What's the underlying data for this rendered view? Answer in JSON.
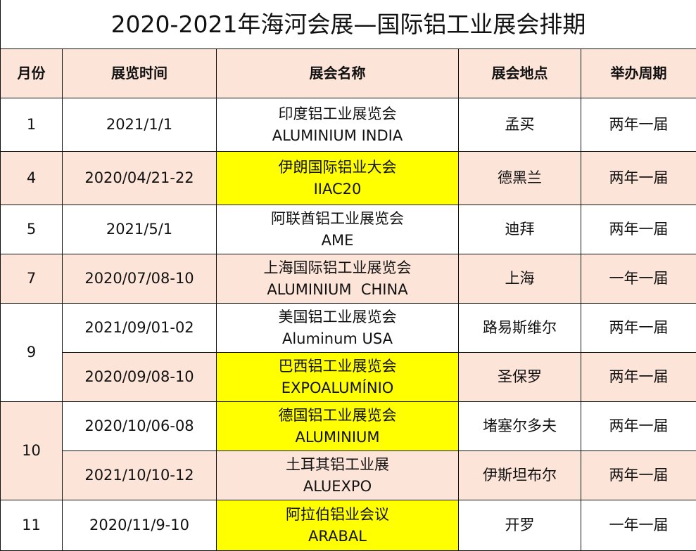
{
  "title": "2020-2021年海河会展—国际铝工业展会排期",
  "headers": [
    "月份",
    "展览时间",
    "展会名称",
    "展会地点",
    "举办周期"
  ],
  "colors": {
    "header_bg": "#fde4d8",
    "alt_row_bg": "#fde4d8",
    "highlight": "#ffff00"
  },
  "rows": [
    {
      "month": "1",
      "date": "2021/1/1",
      "name_cn": "印度铝工业展览会",
      "name_en": "ALUMINIUM INDIA",
      "place": "孟买",
      "cycle": "两年一届",
      "highlight": false
    },
    {
      "month": "4",
      "date": "2020/04/21-22",
      "name_cn": "伊朗国际铝业大会",
      "name_en": "IIAC20",
      "place": "德黑兰",
      "cycle": "两年一届",
      "highlight": true
    },
    {
      "month": "5",
      "date": "2021/5/1",
      "name_cn": "阿联酋铝工业展览会",
      "name_en": "AME",
      "place": "迪拜",
      "cycle": "两年一届",
      "highlight": false
    },
    {
      "month": "7",
      "date": "2020/07/08-10",
      "name_cn": "上海国际铝工业展览会",
      "name_en": "ALUMINIUM  CHINA",
      "place": "上海",
      "cycle": "一年一届",
      "highlight": false
    },
    {
      "month": "9",
      "date": "2021/09/01-02",
      "name_cn": "美国铝工业展览会",
      "name_en": "Aluminum USA",
      "place": "路易斯维尔",
      "cycle": "两年一届",
      "highlight": false
    },
    {
      "month": "9",
      "date": "2020/09/08-10",
      "name_cn": "巴西铝工业展览会",
      "name_en": "EXPOALUMÍNIO",
      "place": "圣保罗",
      "cycle": "两年一届",
      "highlight": true
    },
    {
      "month": "10",
      "date": "2020/10/06-08",
      "name_cn": "德国铝工业展览会",
      "name_en": "ALUMINIUM",
      "place": "堵塞尔多夫",
      "cycle": "两年一届",
      "highlight": true
    },
    {
      "month": "10",
      "date": "2021/10/10-12",
      "name_cn": "土耳其铝工业展",
      "name_en": "ALUEXPO",
      "place": "伊斯坦布尔",
      "cycle": "两年一届",
      "highlight": false
    },
    {
      "month": "11",
      "date": "2020/11/9-10",
      "name_cn": "阿拉伯铝业会议",
      "name_en": "ARABAL",
      "place": "开罗",
      "cycle": "一年一届",
      "highlight": true
    }
  ]
}
